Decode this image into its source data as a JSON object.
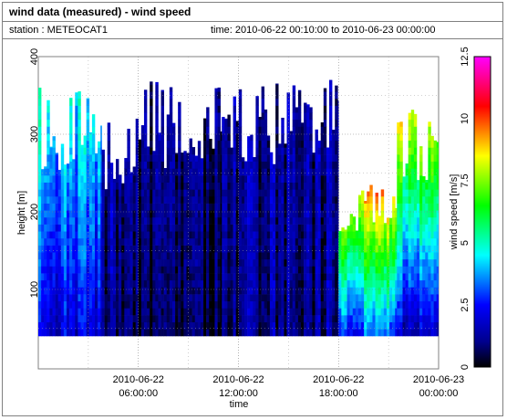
{
  "header": {
    "title": "wind data (measured) - wind speed",
    "station_label": "station : METEOCAT1",
    "time_label": "time: 2010-06-22 00:10:00 to 2010-06-23 00:00:00"
  },
  "chart_data": {
    "type": "heatmap",
    "title": "wind data (measured) - wind speed",
    "xlabel": "time",
    "ylabel": "height [m]",
    "colorbar_label": "wind speed [m/s]",
    "x_range": [
      "2010-06-22 00:00:00",
      "2010-06-23 00:00:00"
    ],
    "ylim": [
      0,
      400
    ],
    "colorbar_range": [
      0,
      12.5
    ],
    "x_ticks": [
      {
        "line1": "2010-06-22",
        "line2": "06:00:00",
        "hours": 6
      },
      {
        "line1": "2010-06-22",
        "line2": "12:00:00",
        "hours": 12
      },
      {
        "line1": "2010-06-22",
        "line2": "18:00:00",
        "hours": 18
      },
      {
        "line1": "2010-06-23",
        "line2": "00:00:00",
        "hours": 24
      }
    ],
    "y_ticks": [
      100,
      200,
      300,
      400
    ],
    "colorbar_ticks": [
      "0",
      "2.5",
      "5",
      "7.5",
      "10",
      "12.5"
    ],
    "grid": true,
    "colors": {
      "colorbar": [
        "#000000",
        "#0000ff",
        "#00ffff",
        "#00ff00",
        "#ffff00",
        "#ff0000",
        "#ff00ff"
      ],
      "frame": "#808080"
    },
    "segments": [
      {
        "from_h": 0.0,
        "to_h": 3.8,
        "height_min": 40,
        "height_max": 360,
        "mean_speed": 5.5,
        "top_speed": 4.8,
        "bottom_speed": 2.0
      },
      {
        "from_h": 3.8,
        "to_h": 6.0,
        "height_min": 40,
        "height_max": 320,
        "mean_speed": 1.8,
        "top_speed": 1.5,
        "bottom_speed": 1.0
      },
      {
        "from_h": 6.0,
        "to_h": 11.0,
        "height_min": 40,
        "height_max": 370,
        "mean_speed": 1.3,
        "top_speed": 1.0,
        "bottom_speed": 0.4
      },
      {
        "from_h": 11.0,
        "to_h": 18.0,
        "height_min": 40,
        "height_max": 370,
        "mean_speed": 1.6,
        "top_speed": 1.3,
        "bottom_speed": 1.0
      },
      {
        "from_h": 18.0,
        "to_h": 21.5,
        "height_min": 40,
        "height_max": 240,
        "mean_speed": 6.0,
        "top_speed": 9.5,
        "bottom_speed": 3.0
      },
      {
        "from_h": 21.5,
        "to_h": 24.0,
        "height_min": 40,
        "height_max": 340,
        "mean_speed": 7.0,
        "top_speed": 8.5,
        "bottom_speed": 1.5
      }
    ]
  }
}
